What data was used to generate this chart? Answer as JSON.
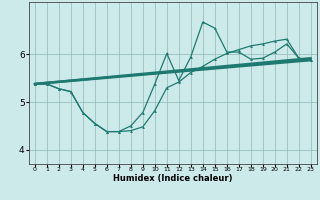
{
  "title": "",
  "xlabel": "Humidex (Indice chaleur)",
  "bg_color": "#cceaea",
  "grid_color": "#9bbfbf",
  "line_color": "#1e7a70",
  "xlim": [
    -0.5,
    23.5
  ],
  "ylim": [
    3.7,
    7.1
  ],
  "yticks": [
    4,
    5,
    6
  ],
  "xticks": [
    0,
    1,
    2,
    3,
    4,
    5,
    6,
    7,
    8,
    9,
    10,
    11,
    12,
    13,
    14,
    15,
    16,
    17,
    18,
    19,
    20,
    21,
    22,
    23
  ],
  "line1_x": [
    0,
    1,
    2,
    3,
    4,
    5,
    6,
    7,
    8,
    9,
    10,
    11,
    12,
    13,
    14,
    15,
    16,
    17,
    18,
    19,
    20,
    21,
    22,
    23
  ],
  "line1_y": [
    5.38,
    5.38,
    5.28,
    5.22,
    4.78,
    4.55,
    4.38,
    4.38,
    4.4,
    4.48,
    4.82,
    5.3,
    5.42,
    5.62,
    5.75,
    5.9,
    6.02,
    6.1,
    6.18,
    6.22,
    6.28,
    6.32,
    5.92,
    5.88
  ],
  "line2_x": [
    0,
    1,
    2,
    3,
    4,
    5,
    6,
    7,
    8,
    9,
    10,
    11,
    12,
    13,
    14,
    15,
    16,
    17,
    18,
    19,
    20,
    21,
    22,
    23
  ],
  "line2_y": [
    5.38,
    5.38,
    5.28,
    5.22,
    4.78,
    4.55,
    4.38,
    4.38,
    4.5,
    4.78,
    5.38,
    6.02,
    5.45,
    5.95,
    6.68,
    6.55,
    6.05,
    6.05,
    5.9,
    5.92,
    6.05,
    6.22,
    5.92,
    5.88
  ],
  "line3_x": [
    0,
    23
  ],
  "line3_y": [
    5.38,
    5.88
  ],
  "line4_x": [
    0,
    23
  ],
  "line4_y": [
    5.38,
    5.92
  ]
}
